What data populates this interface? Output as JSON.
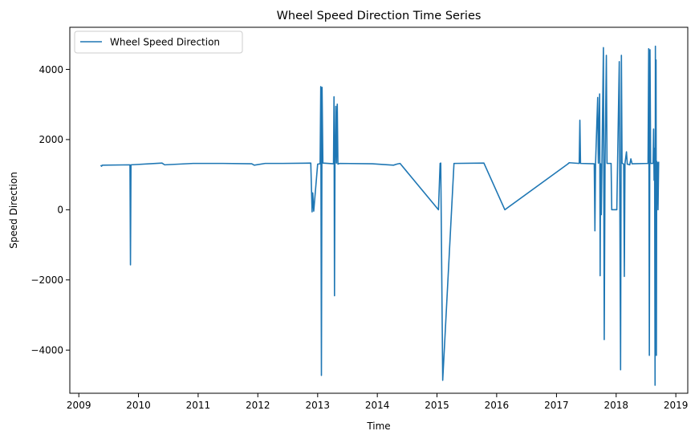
{
  "chart_data": {
    "type": "line",
    "title": "Wheel Speed Direction Time Series",
    "xlabel": "Time",
    "ylabel": "Speed Direction",
    "xlim": [
      "2008-11-07",
      "2019-03-15"
    ],
    "ylim": [
      -5230,
      5200
    ],
    "x_ticks": [
      {
        "value": "2009-01-01",
        "label": "2009"
      },
      {
        "value": "2010-01-01",
        "label": "2010"
      },
      {
        "value": "2011-01-01",
        "label": "2011"
      },
      {
        "value": "2012-01-01",
        "label": "2012"
      },
      {
        "value": "2013-01-01",
        "label": "2013"
      },
      {
        "value": "2014-01-01",
        "label": "2014"
      },
      {
        "value": "2015-01-01",
        "label": "2015"
      },
      {
        "value": "2016-01-01",
        "label": "2016"
      },
      {
        "value": "2017-01-01",
        "label": "2017"
      },
      {
        "value": "2018-01-01",
        "label": "2018"
      },
      {
        "value": "2019-01-01",
        "label": "2019"
      }
    ],
    "y_ticks": [
      {
        "value": 4000,
        "label": "4000"
      },
      {
        "value": 2000,
        "label": "2000"
      },
      {
        "value": 0,
        "label": "0"
      },
      {
        "value": -2000,
        "label": "−2000"
      },
      {
        "value": -4000,
        "label": "−4000"
      }
    ],
    "grid": false,
    "legend_position": "upper-left",
    "series": [
      {
        "name": "Wheel Speed Direction",
        "color": "#1f77b4",
        "points": [
          [
            "2009-05-15",
            1270
          ],
          [
            "2009-05-20",
            1240
          ],
          [
            "2009-05-25",
            1270
          ],
          [
            "2009-11-10",
            1280
          ],
          [
            "2009-11-13",
            -1570
          ],
          [
            "2009-11-16",
            1280
          ],
          [
            "2010-05-25",
            1330
          ],
          [
            "2010-06-10",
            1280
          ],
          [
            "2010-12-01",
            1320
          ],
          [
            "2011-06-01",
            1320
          ],
          [
            "2011-11-25",
            1310
          ],
          [
            "2011-12-10",
            1270
          ],
          [
            "2012-02-15",
            1320
          ],
          [
            "2012-06-01",
            1320
          ],
          [
            "2012-11-20",
            1330
          ],
          [
            "2012-11-28",
            -60
          ],
          [
            "2012-12-02",
            480
          ],
          [
            "2012-12-08",
            -40
          ],
          [
            "2013-01-01",
            1300
          ],
          [
            "2013-01-16",
            1310
          ],
          [
            "2013-01-20",
            3510
          ],
          [
            "2013-01-24",
            -4720
          ],
          [
            "2013-01-28",
            3490
          ],
          [
            "2013-02-02",
            1330
          ],
          [
            "2013-04-08",
            1310
          ],
          [
            "2013-04-11",
            3220
          ],
          [
            "2013-04-14",
            -2450
          ],
          [
            "2013-04-17",
            1300
          ],
          [
            "2013-04-22",
            2950
          ],
          [
            "2013-04-26",
            1330
          ],
          [
            "2013-05-01",
            3010
          ],
          [
            "2013-05-05",
            1300
          ],
          [
            "2013-05-15",
            1320
          ],
          [
            "2013-12-01",
            1310
          ],
          [
            "2014-04-10",
            1270
          ],
          [
            "2014-04-30",
            1300
          ],
          [
            "2014-05-20",
            1320
          ],
          [
            "2015-01-10",
            0
          ],
          [
            "2015-01-20",
            1320
          ],
          [
            "2015-01-24",
            1330
          ],
          [
            "2015-02-05",
            -4860
          ],
          [
            "2015-04-15",
            1320
          ],
          [
            "2015-10-15",
            1330
          ],
          [
            "2016-02-20",
            0
          ],
          [
            "2017-03-10",
            1300
          ],
          [
            "2017-03-20",
            1340
          ],
          [
            "2017-05-20",
            1320
          ],
          [
            "2017-05-24",
            2550
          ],
          [
            "2017-05-28",
            1320
          ],
          [
            "2017-08-20",
            1310
          ],
          [
            "2017-08-24",
            -600
          ],
          [
            "2017-08-28",
            1320
          ],
          [
            "2017-09-10",
            3200
          ],
          [
            "2017-09-14",
            1330
          ],
          [
            "2017-09-22",
            3300
          ],
          [
            "2017-09-25",
            -1880
          ],
          [
            "2017-09-28",
            1310
          ],
          [
            "2017-10-02",
            -140
          ],
          [
            "2017-10-06",
            1320
          ],
          [
            "2017-10-15",
            4620
          ],
          [
            "2017-10-20",
            -3700
          ],
          [
            "2017-10-25",
            1320
          ],
          [
            "2017-11-02",
            4400
          ],
          [
            "2017-11-06",
            1320
          ],
          [
            "2017-12-01",
            1320
          ],
          [
            "2017-12-05",
            0
          ],
          [
            "2018-01-05",
            0
          ],
          [
            "2018-01-20",
            4220
          ],
          [
            "2018-01-24",
            -400
          ],
          [
            "2018-01-28",
            -4560
          ],
          [
            "2018-02-02",
            4400
          ],
          [
            "2018-02-06",
            1330
          ],
          [
            "2018-02-16",
            1300
          ],
          [
            "2018-02-20",
            -1900
          ],
          [
            "2018-02-24",
            1320
          ],
          [
            "2018-03-05",
            1650
          ],
          [
            "2018-03-10",
            1300
          ],
          [
            "2018-03-25",
            1280
          ],
          [
            "2018-04-01",
            1450
          ],
          [
            "2018-04-08",
            1310
          ],
          [
            "2018-07-15",
            1320
          ],
          [
            "2018-07-19",
            4590
          ],
          [
            "2018-07-23",
            -4150
          ],
          [
            "2018-07-27",
            4560
          ],
          [
            "2018-07-31",
            1320
          ],
          [
            "2018-08-15",
            1320
          ],
          [
            "2018-08-18",
            2300
          ],
          [
            "2018-08-21",
            840
          ],
          [
            "2018-08-24",
            1750
          ],
          [
            "2018-08-27",
            -5000
          ],
          [
            "2018-08-29",
            4660
          ],
          [
            "2018-08-31",
            -1800
          ],
          [
            "2018-09-02",
            4270
          ],
          [
            "2018-09-04",
            -4150
          ],
          [
            "2018-09-06",
            1380
          ],
          [
            "2018-09-08",
            850
          ],
          [
            "2018-09-10",
            1350
          ],
          [
            "2018-09-14",
            0
          ],
          [
            "2018-09-18",
            1370
          ]
        ]
      }
    ]
  }
}
